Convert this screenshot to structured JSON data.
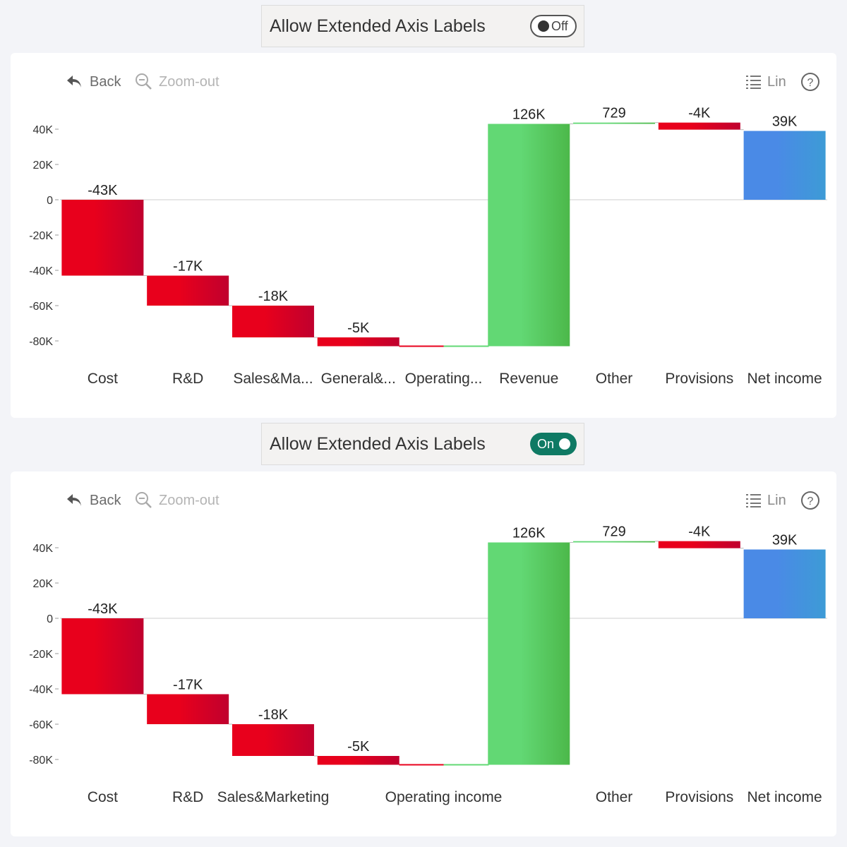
{
  "panels": [
    {
      "toggle_label": "Allow Extended Axis Labels",
      "toggle_state": "Off",
      "toolbar": {
        "back": "Back",
        "zoom_out": "Zoom-out",
        "scale": "Lin"
      },
      "icons": [
        "back-arrow-icon",
        "zoom-out-icon",
        "list-icon",
        "help-icon"
      ],
      "chart_data": {
        "type": "waterfall",
        "y_ticks": [
          "40K",
          "20K",
          "0",
          "-20K",
          "-40K",
          "-60K",
          "-80K"
        ],
        "ylim": [
          -80000,
          40000
        ],
        "categories": [
          "Cost",
          "R&D",
          "Sales&Ma...",
          "General&...",
          "Operating...",
          "Revenue",
          "Other",
          "Provisions",
          "Net income"
        ],
        "values": [
          -43000,
          -17000,
          -18000,
          -5000,
          null,
          126000,
          729,
          -4000,
          39000
        ],
        "data_labels": [
          "-43K",
          "-17K",
          "-18K",
          "-5K",
          "",
          "126K",
          "729",
          "-4K",
          "39K"
        ],
        "kinds": [
          "delta",
          "delta",
          "delta",
          "delta",
          "subtotal",
          "delta",
          "delta",
          "delta",
          "total"
        ]
      }
    },
    {
      "toggle_label": "Allow Extended Axis Labels",
      "toggle_state": "On",
      "toolbar": {
        "back": "Back",
        "zoom_out": "Zoom-out",
        "scale": "Lin"
      },
      "icons": [
        "back-arrow-icon",
        "zoom-out-icon",
        "list-icon",
        "help-icon"
      ],
      "chart_data": {
        "type": "waterfall",
        "y_ticks": [
          "40K",
          "20K",
          "0",
          "-20K",
          "-40K",
          "-60K",
          "-80K"
        ],
        "ylim": [
          -80000,
          40000
        ],
        "categories": [
          "Cost",
          "R&D",
          "Sales&Marketing",
          "",
          "Operating income",
          "",
          "Other",
          "Provisions",
          "Net income"
        ],
        "values": [
          -43000,
          -17000,
          -18000,
          -5000,
          null,
          126000,
          729,
          -4000,
          39000
        ],
        "data_labels": [
          "-43K",
          "-17K",
          "-18K",
          "-5K",
          "",
          "126K",
          "729",
          "-4K",
          "39K"
        ],
        "kinds": [
          "delta",
          "delta",
          "delta",
          "delta",
          "subtotal",
          "delta",
          "delta",
          "delta",
          "total"
        ]
      }
    }
  ],
  "colors": {
    "negative": "#e8001c",
    "negative_dark": "#c0002e",
    "positive": "#62d874",
    "positive_dark": "#4cb84a",
    "total": "#4a8ae6",
    "total_dark": "#3d9bd6",
    "toggle_on": "#0f7a64"
  }
}
